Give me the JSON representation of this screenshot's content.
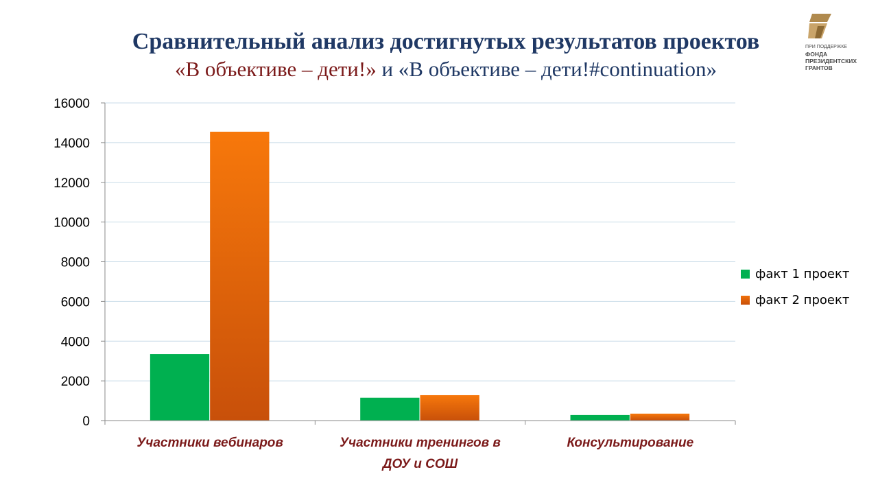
{
  "title": {
    "line1": "Сравнительный анализ достигнутых результатов проектов",
    "line2_part1": "«В объективе – дети!»",
    "line2_part2": " и «В объективе – дети!#continuation»"
  },
  "logo": {
    "small": "ПРИ ПОДДЕРЖКЕ",
    "bold1": "ФОНДА",
    "bold2": "ПРЕЗИДЕНТСКИХ",
    "bold3": "ГРАНТОВ"
  },
  "colors": {
    "series1": "#00b050",
    "series2": "#f0700a",
    "series2_dark": "#c8500a",
    "title": "#1f3864",
    "category": "#7b1a1a",
    "grid": "#c8dbe8"
  },
  "chart_data": {
    "type": "bar",
    "categories": [
      [
        "Участники вебинаров"
      ],
      [
        "Участники тренингов в",
        "ДОУ и СОШ"
      ],
      [
        "Консультирование"
      ]
    ],
    "series": [
      {
        "name": "факт 1 проект",
        "values": [
          3350,
          1150,
          280
        ]
      },
      {
        "name": "факт 2 проект",
        "values": [
          14550,
          1280,
          350
        ]
      }
    ],
    "yticks": [
      "0",
      "2000",
      "4000",
      "6000",
      "8000",
      "10000",
      "12000",
      "14000",
      "16000"
    ],
    "ylim": [
      0,
      16000
    ],
    "grid": true,
    "legend": "right"
  }
}
